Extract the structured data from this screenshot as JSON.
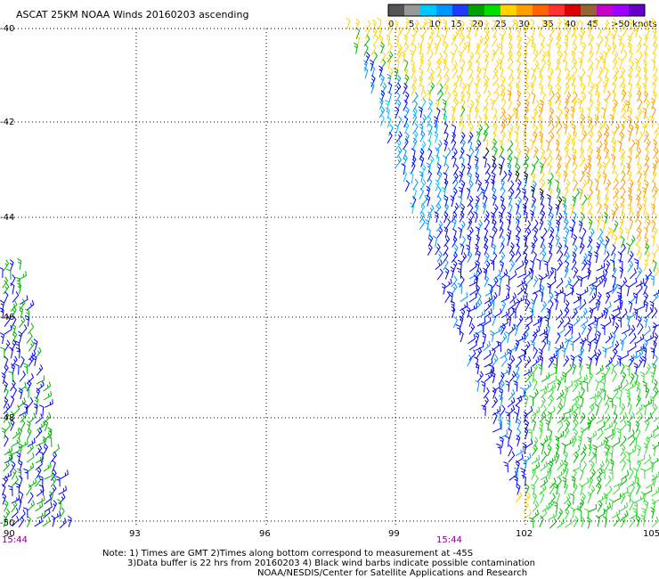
{
  "title": "ASCAT 25KM NOAA Winds 20160203 ascending",
  "legend": {
    "colors": [
      "#555555",
      "#999999",
      "#00c8ff",
      "#0096ff",
      "#1e3cff",
      "#00a000",
      "#00e000",
      "#ffd200",
      "#ffa000",
      "#ff6400",
      "#ff3232",
      "#dc0000",
      "#966432",
      "#c800c8",
      "#a000ff",
      "#6400c8"
    ],
    "labels": [
      "0",
      "5",
      "10",
      "15",
      "20",
      "25",
      "30",
      "35",
      "40",
      "45",
      ">50 knots"
    ]
  },
  "lat_labels": [
    "-40",
    "-42",
    "-44",
    "-46",
    "-48",
    "-50"
  ],
  "lon_labels": [
    "90",
    "93",
    "96",
    "99",
    "102",
    "105"
  ],
  "time_labels": [
    "15:44",
    "15:44"
  ],
  "notes": {
    "line1": "Note: 1) Times are GMT 2)Times along bottom correspond to measurement at -45S",
    "line2": "3)Data buffer is 22 hrs from 20160203 4) Black wind barbs indicate possible contamination",
    "line3": "NOAA/NESDIS/Center for Satellite Applications and Research"
  },
  "wind_colors": {
    "orange": "#ff9900",
    "yellow": "#ffd200",
    "green": "#00b400",
    "light_green": "#33dd33",
    "blue": "#0000ff",
    "light_blue": "#0096ff",
    "cyan": "#00c8ff",
    "black": "#000000"
  }
}
